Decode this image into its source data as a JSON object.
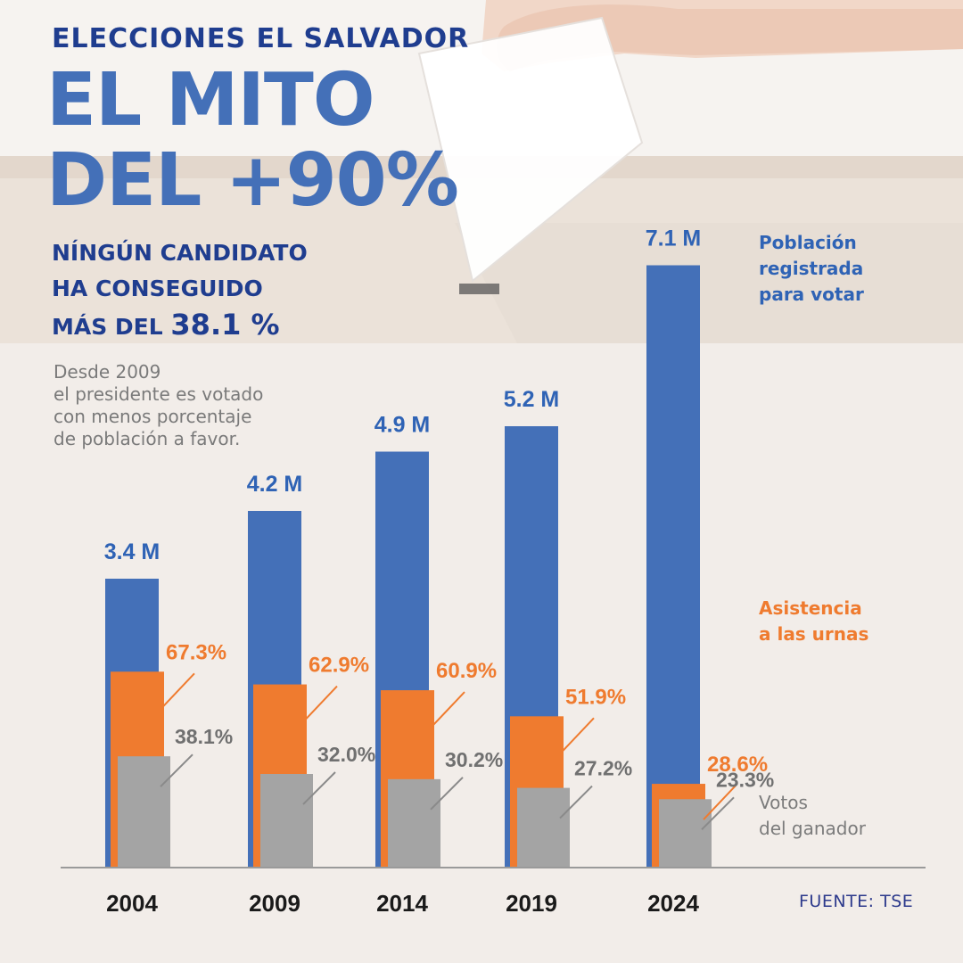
{
  "header": {
    "overline": "ELECCIONES EL SALVADOR",
    "title_line1": "EL MITO",
    "title_line2": "DEL +90%",
    "subtitle_line1": "NÍNGÚN CANDIDATO",
    "subtitle_line2": "HA CONSEGUIDO",
    "subtitle_line3_prefix": "MÁS DEL ",
    "subtitle_line3_value": "38.1 %"
  },
  "note": {
    "line1": "Desde 2009",
    "line2": "el presidente es votado",
    "line3": "con menos porcentaje",
    "line4": "de población a favor."
  },
  "legend": {
    "registered_line1": "Población",
    "registered_line2": "registrada",
    "registered_line3": "para votar",
    "turnout_line1": "Asistencia",
    "turnout_line2": "a las urnas",
    "winner_line1": "Votos",
    "winner_line2": "del ganador"
  },
  "source": "FUENTE: TSE",
  "colors": {
    "registered": "#4470b8",
    "turnout": "#ef7b2f",
    "winner": "#a4a4a4",
    "registered_label": "#2f63b5",
    "turnout_label": "#ef7b2f",
    "winner_label": "#707070",
    "title_dark": "#1f3d8f"
  },
  "chart_data": {
    "type": "bar",
    "categories": [
      "2004",
      "2009",
      "2014",
      "2019",
      "2024"
    ],
    "series": [
      {
        "name": "Población registrada para votar",
        "values": [
          3.4,
          4.2,
          4.9,
          5.2,
          7.1
        ],
        "labels": [
          "3.4 M",
          "4.2 M",
          "4.9 M",
          "5.2 M",
          "7.1 M"
        ],
        "unit": "M"
      },
      {
        "name": "Asistencia a las urnas",
        "values": [
          67.3,
          62.9,
          60.9,
          51.9,
          28.6
        ],
        "labels": [
          "67.3%",
          "62.9%",
          "60.9%",
          "51.9%",
          "28.6%"
        ],
        "unit": "%"
      },
      {
        "name": "Votos del ganador",
        "values": [
          38.1,
          32.0,
          30.2,
          27.2,
          23.3
        ],
        "labels": [
          "38.1%",
          "32.0%",
          "30.2%",
          "27.2%",
          "23.3%"
        ],
        "unit": "%"
      }
    ],
    "layout": "overlapping bars per year",
    "grid": false,
    "legend": "right"
  }
}
